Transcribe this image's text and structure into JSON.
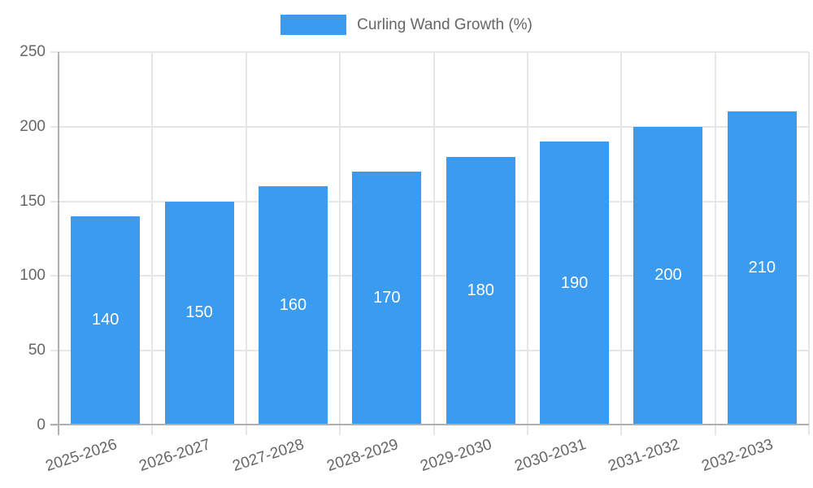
{
  "chart_data": {
    "type": "bar",
    "categories": [
      "2025-2026",
      "2026-2027",
      "2027-2028",
      "2028-2029",
      "2029-2030",
      "2030-2031",
      "2031-2032",
      "2032-2033"
    ],
    "series": [
      {
        "name": "Curling Wand Growth (%)",
        "values": [
          140,
          150,
          160,
          170,
          180,
          190,
          200,
          210
        ]
      }
    ],
    "title": "",
    "xlabel": "",
    "ylabel": "",
    "ylim": [
      0,
      250
    ],
    "yticks": [
      0,
      50,
      100,
      150,
      200,
      250
    ],
    "grid": "on",
    "legend_position": "top-center",
    "bar_labels": "inside-center-white",
    "colors": {
      "bar": "#3b9bef",
      "axis_text": "#666666",
      "bar_label_text": "#ffffff",
      "gridline": "#e6e6e6",
      "axis_line": "#b0b0b0",
      "background": "#ffffff"
    }
  }
}
